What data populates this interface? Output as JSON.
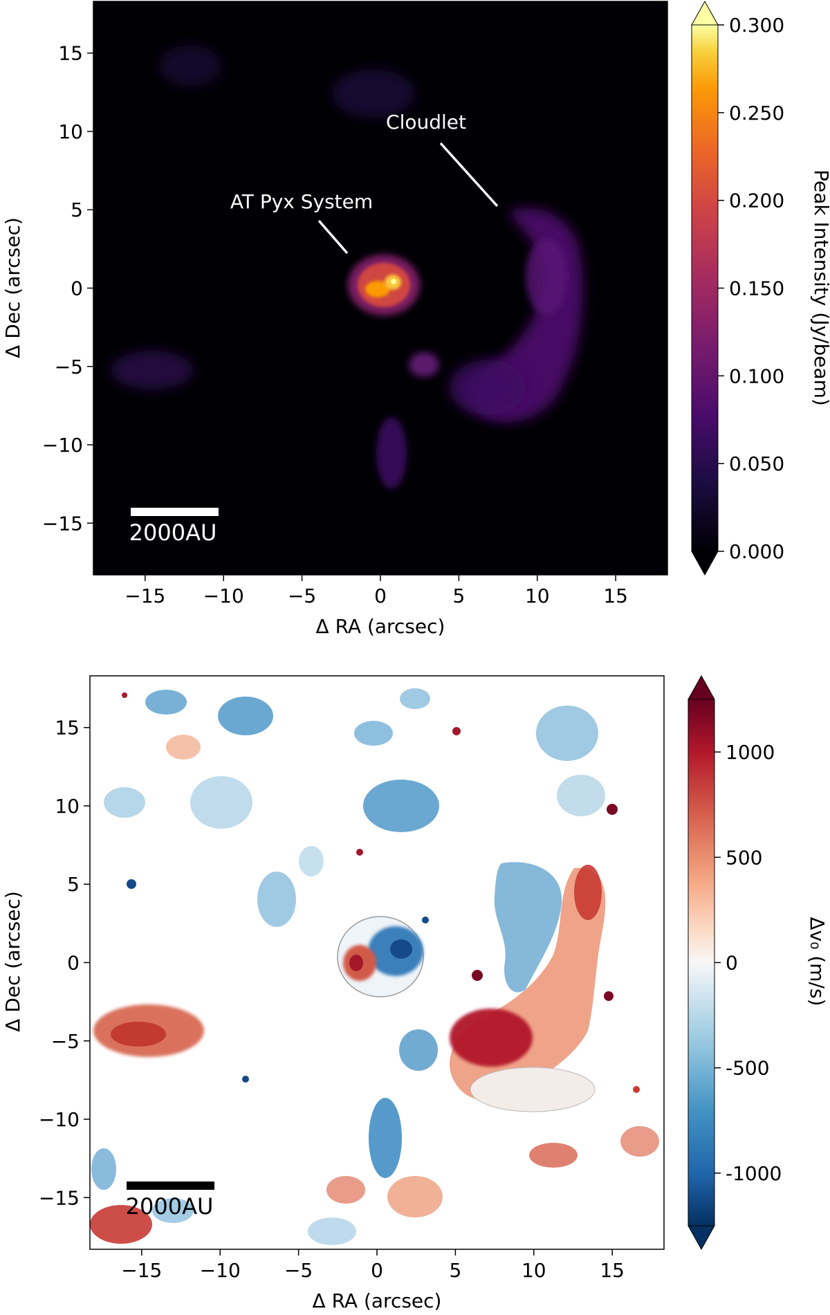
{
  "chart_data": [
    {
      "type": "heatmap",
      "name": "peak-intensity-map",
      "xlabel": "Δ RA (arcsec)",
      "ylabel": "Δ Dec (arcsec)",
      "xlim": [
        -18.3,
        18.3
      ],
      "ylim": [
        -18.3,
        18.3
      ],
      "xticks": [
        -15,
        -10,
        -5,
        0,
        5,
        10,
        15
      ],
      "yticks": [
        -15,
        -10,
        -5,
        0,
        5,
        10,
        15
      ],
      "colormap": "inferno",
      "colorbar": {
        "label": "Peak Intensity (Jy/beam)",
        "vmin": 0.0,
        "vmax": 0.3,
        "ticks": [
          0.0,
          0.05,
          0.1,
          0.15,
          0.2,
          0.25,
          0.3
        ],
        "tick_labels": [
          "0.000",
          "0.050",
          "0.100",
          "0.150",
          "0.200",
          "0.250",
          "0.300"
        ],
        "extend": "both"
      },
      "scalebar_label": "2000AU",
      "scalebar_range": [
        -16,
        -10.5
      ],
      "scalebar_y": -14.2,
      "annotations": [
        {
          "text": "AT Pyx System",
          "text_at": [
            -5,
            5.5
          ],
          "arrow_from": [
            -2.6,
            4
          ],
          "arrow_to": [
            -2,
            2.1
          ]
        },
        {
          "text": "Cloudlet",
          "text_at": [
            2.8,
            10.5
          ],
          "arrow_from": [
            3.8,
            9.2
          ],
          "arrow_to": [
            7.4,
            5.3
          ]
        }
      ],
      "features": [
        {
          "label": "AT Pyx disk",
          "center": [
            0.3,
            0.0
          ],
          "radius": 1.8,
          "peak": 0.29
        },
        {
          "label": "southern blob",
          "center": [
            2.5,
            -4.8
          ],
          "radius": 0.9,
          "peak": 0.07
        },
        {
          "label": "southern tail",
          "center": [
            0.0,
            -10.8
          ],
          "radius": 1.4,
          "peak": 0.045
        },
        {
          "label": "cloudlet arc",
          "center": [
            9.5,
            -2.0
          ],
          "radius": 5.5,
          "peak": 0.07
        },
        {
          "label": "western patch",
          "center": [
            -14.0,
            -5.0
          ],
          "radius": 2.2,
          "peak": 0.03
        }
      ]
    },
    {
      "type": "heatmap",
      "name": "velocity-residual-map",
      "xlabel": "Δ RA (arcsec)",
      "ylabel": "Δ Dec (arcsec)",
      "xlim": [
        -18.3,
        18.3
      ],
      "ylim": [
        -18.3,
        18.3
      ],
      "xticks": [
        -15,
        -10,
        -5,
        0,
        5,
        10,
        15
      ],
      "yticks": [
        -15,
        -10,
        -5,
        0,
        5,
        10,
        15
      ],
      "colormap": "RdBu_r",
      "colorbar": {
        "label": "Δv₀ (m/s)",
        "vmin": -1250,
        "vmax": 1250,
        "ticks": [
          -1000,
          -500,
          0,
          500,
          1000
        ],
        "tick_labels": [
          "-1000",
          "-500",
          "0",
          "500",
          "1000"
        ],
        "extend": "both"
      },
      "scalebar_label": "2000AU",
      "scalebar_range": [
        -16,
        -10.5
      ],
      "scalebar_y": -14.2,
      "features": [
        {
          "label": "AT Pyx disk (red lobe)",
          "center": [
            -0.9,
            -0.6
          ],
          "radius": 1.2,
          "value": 900
        },
        {
          "label": "AT Pyx disk (blue lobe)",
          "center": [
            0.8,
            0.3
          ],
          "radius": 1.4,
          "value": -1000
        },
        {
          "label": "cloudlet blue north",
          "center": [
            8.5,
            2.0
          ],
          "radius": 3.0,
          "value": -450
        },
        {
          "label": "cloudlet red south",
          "center": [
            7.0,
            -5.0
          ],
          "radius": 3.2,
          "value": 950
        },
        {
          "label": "cloudlet red arc",
          "center": [
            12.5,
            1.0
          ],
          "radius": 2.6,
          "value": 550
        },
        {
          "label": "western red patch",
          "center": [
            -14.0,
            -5.5
          ],
          "radius": 2.4,
          "value": 600
        },
        {
          "label": "southern blue tail",
          "center": [
            0.0,
            -10.0
          ],
          "radius": 1.6,
          "value": -600
        },
        {
          "label": "northern blue clumps",
          "center": [
            2.5,
            11.0
          ],
          "radius": 3.0,
          "value": -500
        }
      ]
    }
  ]
}
